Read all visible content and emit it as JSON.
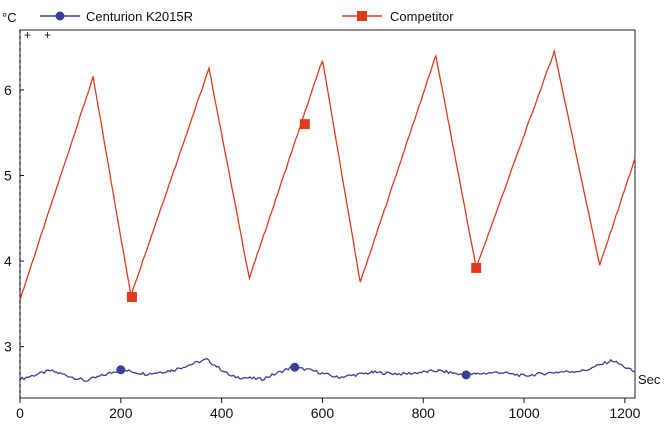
{
  "chart_data": {
    "type": "line",
    "y_unit_label": "°C",
    "x_unit_label": "Sec",
    "xlim": [
      0,
      1220
    ],
    "ylim": [
      2.4,
      6.7
    ],
    "x_ticks": [
      "0",
      "200",
      "400",
      "600",
      "800",
      "1000",
      "1200"
    ],
    "x_tick_values": [
      0,
      200,
      400,
      600,
      800,
      1000,
      1200
    ],
    "y_ticks": [
      "3",
      "4",
      "5",
      "6"
    ],
    "y_tick_values": [
      3,
      4,
      5,
      6
    ],
    "grid": false,
    "legend_placement": "top",
    "series": [
      {
        "name": "Centurion K2015R",
        "color": "#3a3f98",
        "marker": "circle",
        "x": [
          0,
          60,
          130,
          200,
          250,
          300,
          370,
          420,
          480,
          540,
          580,
          630,
          700,
          760,
          830,
          880,
          950,
          1000,
          1060,
          1120,
          1175,
          1220
        ],
        "y": [
          2.62,
          2.72,
          2.6,
          2.73,
          2.68,
          2.72,
          2.85,
          2.65,
          2.62,
          2.76,
          2.72,
          2.64,
          2.7,
          2.68,
          2.72,
          2.67,
          2.7,
          2.66,
          2.7,
          2.72,
          2.84,
          2.7
        ],
        "marker_points": [
          [
            200,
            2.73
          ],
          [
            545,
            2.76
          ],
          [
            885,
            2.67
          ]
        ]
      },
      {
        "name": "Competitor",
        "color": "#e03a1e",
        "marker": "square",
        "x": [
          0,
          145,
          220,
          375,
          455,
          600,
          675,
          825,
          905,
          1060,
          1150,
          1220
        ],
        "y": [
          3.55,
          6.15,
          3.6,
          6.25,
          3.8,
          6.35,
          3.75,
          6.4,
          3.92,
          6.45,
          3.95,
          5.2
        ],
        "marker_points": [
          [
            222,
            3.58
          ],
          [
            565,
            5.6
          ],
          [
            905,
            3.92
          ]
        ]
      }
    ]
  }
}
